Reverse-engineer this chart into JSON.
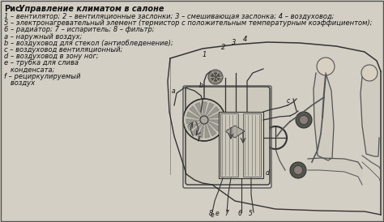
{
  "title_bold": "Рис.",
  "title_italic": "   Управление климатом в салоне",
  "legend_lines": [
    "1 – вентилятор; 2 – вентиляционные заслонки; 3 – смешивающая заслонка; 4 – воздуховод;",
    "5 – электронагревательный элемент (термистор с положительным температурным коэффициентом);",
    "6 – радиатор; 7 – испаритель; 8 – фильтр;",
    "a – наружный воздух;",
    "b – воздуховод для стекол (антиобледенение);",
    "c – воздуховод вентиляционный;",
    "d – воздуховод в зону ног;",
    "e – трубка для слива",
    "   конденсата;",
    "f – рециркулируемый",
    "   воздух"
  ],
  "bg_color": "#d4cfc5",
  "border_color": "#555555",
  "text_color": "#111111",
  "title_fontsize": 7.0,
  "legend_fontsize": 6.0,
  "fig_width": 4.74,
  "fig_height": 2.74,
  "dpi": 100
}
